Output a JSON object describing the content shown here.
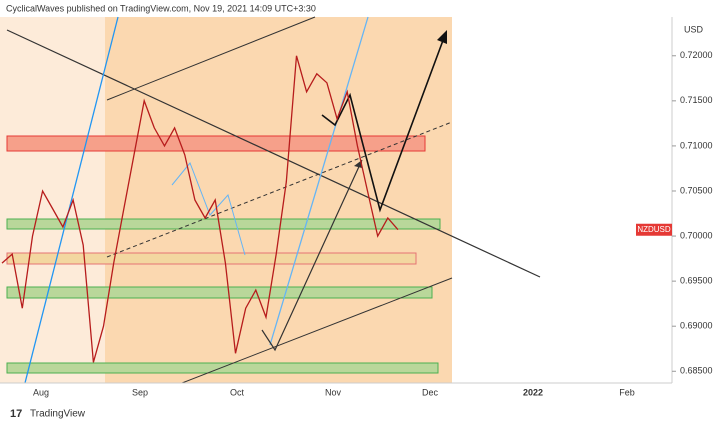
{
  "header": "CyclicalWaves published on TradingView.com, Nov 19, 2021 14:09 UTC+3:30",
  "footer": "TradingView",
  "chart_data": {
    "type": "line",
    "symbol": "NZDUSD",
    "currency": "USD",
    "color": "#b71c1c",
    "values": [
      0.697,
      0.698,
      0.692,
      0.7,
      0.705,
      0.703,
      0.701,
      0.704,
      0.699,
      0.686,
      0.69,
      0.697,
      0.703,
      0.709,
      0.715,
      0.712,
      0.71,
      0.712,
      0.709,
      0.704,
      0.702,
      0.704,
      0.697,
      0.687,
      0.692,
      0.694,
      0.691,
      0.698,
      0.706,
      0.72,
      0.716,
      0.718,
      0.717,
      0.713,
      0.716,
      0.71,
      0.705,
      0.7,
      0.702,
      0.7007
    ],
    "ylim": [
      0.6837,
      0.7243
    ],
    "yticks": [
      {
        "value": 0.685,
        "label": "0.68500"
      },
      {
        "value": 0.69,
        "label": "0.69000"
      },
      {
        "value": 0.695,
        "label": "0.69500"
      },
      {
        "value": 0.7,
        "label": "0.70000"
      },
      {
        "value": 0.705,
        "label": "0.70500"
      },
      {
        "value": 0.71,
        "label": "0.71000"
      },
      {
        "value": 0.715,
        "label": "0.71500"
      },
      {
        "value": 0.72,
        "label": "0.72000"
      }
    ],
    "xticks": [
      "Aug",
      "Sep",
      "Oct",
      "Nov",
      "Dec",
      "2022",
      "Feb"
    ]
  }
}
